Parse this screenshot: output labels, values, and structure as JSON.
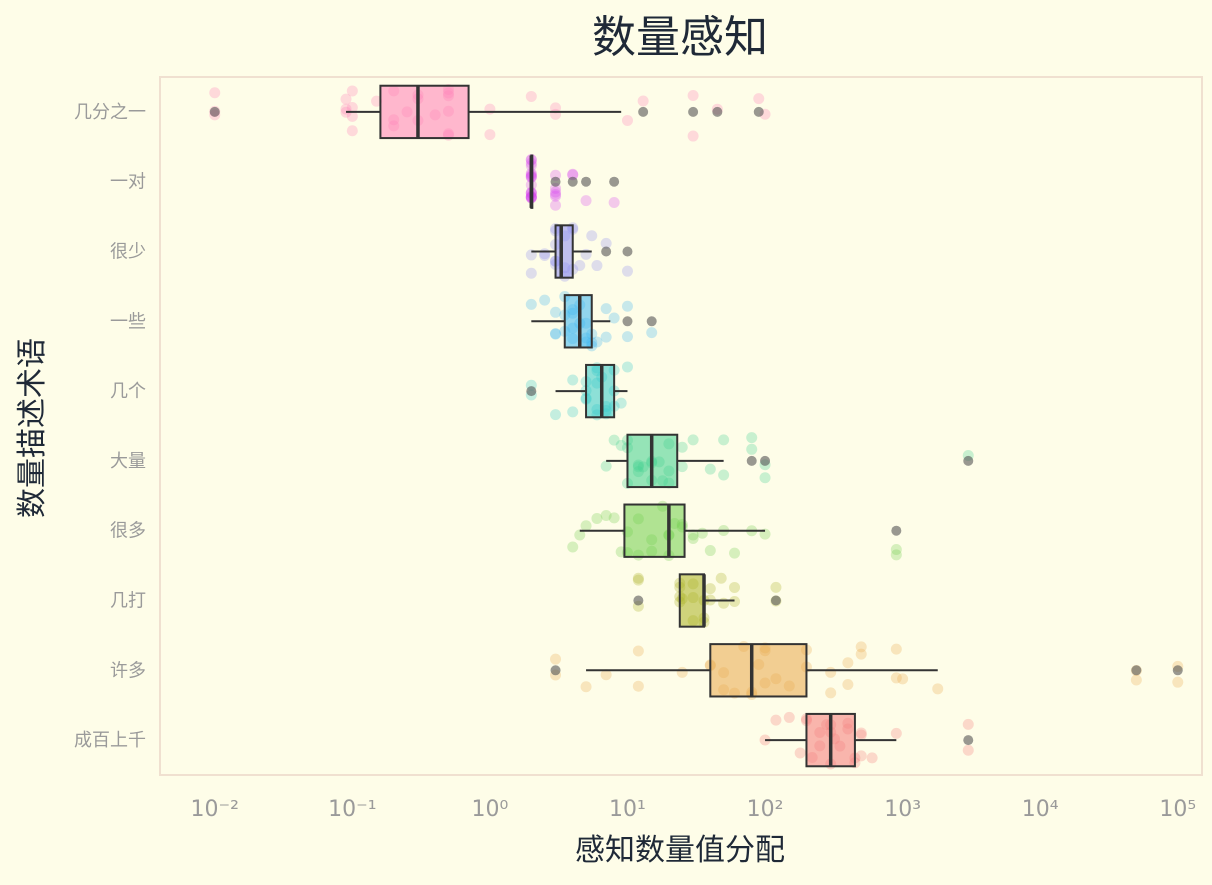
{
  "chart_data": {
    "type": "box",
    "orientation": "horizontal",
    "title": "数量感知",
    "xlabel": "感知数量值分配",
    "ylabel": "数量描述术语",
    "xscale": "log",
    "xlim": [
      0.004,
      150000
    ],
    "xtick_values": [
      0.01,
      0.1,
      1,
      10,
      100,
      1000,
      10000,
      100000
    ],
    "xtick_labels": [
      "10⁻²",
      "10⁻¹",
      "10⁰",
      "10¹",
      "10²",
      "10³",
      "10⁴",
      "10⁵"
    ],
    "grid": false,
    "categories": [
      "几分之一",
      "一对",
      "很少",
      "一些",
      "几个",
      "大量",
      "很多",
      "几打",
      "许多",
      "成百上千"
    ],
    "colors": [
      "#ff7eb6",
      "#d946ef",
      "#8b8cf0",
      "#38b4f0",
      "#30c8c8",
      "#3ecf8e",
      "#6fce4a",
      "#a8b020",
      "#e8a84a",
      "#f47a7a"
    ],
    "boxes": [
      {
        "name": "几分之一",
        "whislo": 0.09,
        "q1": 0.16,
        "med": 0.3,
        "q3": 0.7,
        "whishi": 9,
        "fliers": [
          0.01,
          13,
          30,
          45,
          90
        ]
      },
      {
        "name": "一对",
        "whislo": 2,
        "q1": 2,
        "med": 2,
        "q3": 2,
        "whishi": 2,
        "fliers": [
          3,
          4,
          5,
          8
        ]
      },
      {
        "name": "很少",
        "whislo": 2,
        "q1": 3,
        "med": 3.3,
        "q3": 4,
        "whishi": 5.5,
        "fliers": [
          7,
          10
        ]
      },
      {
        "name": "一些",
        "whislo": 2,
        "q1": 3.5,
        "med": 4.5,
        "q3": 5.5,
        "whishi": 7.5,
        "fliers": [
          10,
          15
        ]
      },
      {
        "name": "几个",
        "whislo": 3,
        "q1": 5,
        "med": 6.5,
        "q3": 8,
        "whishi": 10,
        "fliers": [
          2
        ]
      },
      {
        "name": "大量",
        "whislo": 7,
        "q1": 10,
        "med": 15,
        "q3": 23,
        "whishi": 50,
        "fliers": [
          80,
          100,
          3000
        ]
      },
      {
        "name": "很多",
        "whislo": 4.5,
        "q1": 9.5,
        "med": 20,
        "q3": 26,
        "whishi": 100,
        "fliers": [
          900
        ]
      },
      {
        "name": "几打",
        "whislo": 24,
        "q1": 24,
        "med": 36,
        "q3": 36,
        "whishi": 60,
        "fliers": [
          12,
          120
        ]
      },
      {
        "name": "许多",
        "whislo": 5,
        "q1": 40,
        "med": 80,
        "q3": 200,
        "whishi": 1800,
        "fliers": [
          3,
          50000,
          100000
        ]
      },
      {
        "name": "成百上千",
        "whislo": 100,
        "q1": 200,
        "med": 300,
        "q3": 450,
        "whishi": 900,
        "fliers": [
          3000
        ]
      }
    ],
    "points": [
      [
        0.01,
        0.01,
        0.01,
        0.09,
        0.09,
        0.09,
        0.1,
        0.1,
        0.1,
        0.1,
        0.15,
        0.2,
        0.2,
        0.2,
        0.25,
        0.3,
        0.3,
        0.3,
        0.4,
        0.5,
        0.5,
        0.5,
        0.5,
        0.5,
        0.5,
        1,
        1,
        2,
        3,
        3,
        10,
        13,
        30,
        30,
        45,
        90,
        100
      ],
      [
        2,
        2,
        2,
        2,
        2,
        2,
        2,
        2,
        2,
        2,
        2,
        2,
        2,
        2,
        2,
        2,
        2,
        2,
        3,
        3,
        3,
        3,
        3,
        3,
        4,
        4,
        5,
        8
      ],
      [
        2,
        2,
        2.5,
        2.5,
        3,
        3,
        3,
        3,
        3,
        3,
        3.5,
        3.5,
        3.5,
        4,
        4,
        4,
        4.5,
        5,
        5.5,
        6,
        7,
        10
      ],
      [
        2,
        2.5,
        3,
        3,
        3,
        3.5,
        3.5,
        3.5,
        4,
        4,
        4,
        4,
        4.5,
        4.5,
        5,
        5,
        5,
        5.5,
        5.5,
        5.5,
        6,
        7,
        7,
        8,
        10,
        10,
        15
      ],
      [
        2,
        2,
        3,
        4,
        4,
        5,
        5,
        5,
        5,
        6,
        6,
        6,
        6,
        6,
        6.5,
        7,
        7,
        7,
        8,
        8,
        8,
        9,
        10
      ],
      [
        7,
        8,
        9,
        10,
        10,
        10,
        12,
        12,
        12,
        13,
        15,
        15,
        15,
        17,
        18,
        20,
        20,
        20,
        25,
        25,
        30,
        40,
        50,
        50,
        80,
        80,
        100,
        100,
        3000
      ],
      [
        4,
        4.5,
        5,
        6,
        7,
        8,
        9,
        10,
        10,
        12,
        12,
        15,
        15,
        18,
        20,
        20,
        20,
        22,
        25,
        25,
        30,
        30,
        35,
        40,
        50,
        60,
        80,
        100,
        900,
        900
      ],
      [
        12,
        12,
        12,
        24,
        24,
        24,
        24,
        25,
        30,
        30,
        30,
        36,
        36,
        36,
        40,
        40,
        48,
        50,
        60,
        60,
        120,
        120
      ],
      [
        3,
        3,
        5,
        7,
        12,
        12,
        25,
        40,
        40,
        50,
        50,
        60,
        70,
        80,
        80,
        90,
        100,
        100,
        100,
        120,
        150,
        200,
        200,
        300,
        300,
        400,
        400,
        500,
        500,
        900,
        900,
        1000,
        1800,
        50000,
        50000,
        100000,
        100000
      ],
      [
        100,
        120,
        150,
        180,
        200,
        200,
        220,
        250,
        250,
        280,
        300,
        300,
        300,
        320,
        350,
        400,
        400,
        450,
        450,
        500,
        500,
        500,
        600,
        900,
        3000,
        3000
      ]
    ]
  }
}
